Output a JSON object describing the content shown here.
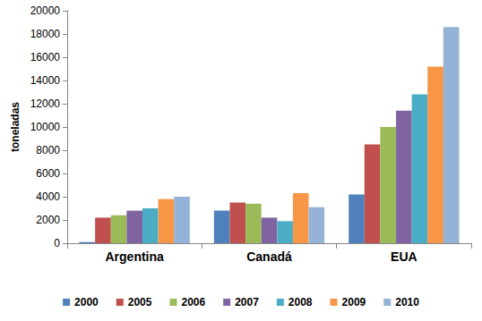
{
  "chart_data": {
    "type": "bar",
    "y_label": "toneladas",
    "categories": [
      "Argentina",
      "Canadá",
      "EUA"
    ],
    "series": [
      {
        "name": "2000",
        "color": "#4F81BD",
        "values": [
          100,
          2800,
          4200
        ]
      },
      {
        "name": "2005",
        "color": "#C0504D",
        "values": [
          2200,
          3500,
          8500
        ]
      },
      {
        "name": "2006",
        "color": "#9BBB59",
        "values": [
          2400,
          3400,
          10000
        ]
      },
      {
        "name": "2007",
        "color": "#8064A2",
        "values": [
          2800,
          2200,
          11400
        ]
      },
      {
        "name": "2008",
        "color": "#4BACC6",
        "values": [
          3000,
          1900,
          12800
        ]
      },
      {
        "name": "2009",
        "color": "#F79646",
        "values": [
          3800,
          4300,
          15200
        ]
      },
      {
        "name": "2010",
        "color": "#95B3D7",
        "values": [
          4000,
          3100,
          18600
        ]
      }
    ],
    "ylim": [
      0,
      20000
    ],
    "yticks": [
      0,
      2000,
      4000,
      6000,
      8000,
      10000,
      12000,
      14000,
      16000,
      18000,
      20000
    ],
    "grid": false,
    "legend": "bottom"
  }
}
